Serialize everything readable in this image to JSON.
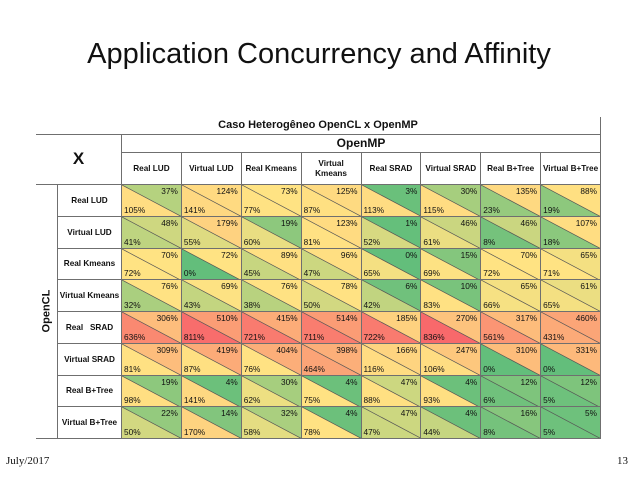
{
  "slide": {
    "title": "Application Concurrency and Affinity",
    "date": "July/2017",
    "page": "13"
  },
  "table": {
    "title": "Caso Heterogêneo OpenCL x OpenMP",
    "col_group": "OpenMP",
    "row_group": "OpenCL",
    "corner": "X",
    "columns": [
      "Real LUD",
      "Virtual LUD",
      "Real Kmeans",
      "Virtual Kmeans",
      "Real SRAD",
      "Virtual SRAD",
      "Real B+Tree",
      "Virtual B+Tree"
    ],
    "rows": [
      "Real LUD",
      "Virtual LUD",
      "Real Kmeans",
      "Virtual Kmeans",
      "Real   SRAD",
      "Virtual SRAD",
      "Real B+Tree",
      "Virtual B+Tree"
    ],
    "top_values": [
      [
        "37%",
        "124%",
        "73%",
        "125%",
        "3%",
        "30%",
        "135%",
        "88%"
      ],
      [
        "48%",
        "179%",
        "19%",
        "123%",
        "1%",
        "46%",
        "46%",
        "107%"
      ],
      [
        "70%",
        "72%",
        "89%",
        "96%",
        "0%",
        "15%",
        "70%",
        "65%"
      ],
      [
        "76%",
        "69%",
        "76%",
        "78%",
        "6%",
        "10%",
        "65%",
        "61%"
      ],
      [
        "306%",
        "510%",
        "415%",
        "514%",
        "185%",
        "270%",
        "317%",
        "460%"
      ],
      [
        "309%",
        "419%",
        "404%",
        "398%",
        "166%",
        "247%",
        "310%",
        "331%"
      ],
      [
        "19%",
        "4%",
        "30%",
        "4%",
        "47%",
        "4%",
        "12%",
        "12%"
      ],
      [
        "22%",
        "14%",
        "32%",
        "4%",
        "47%",
        "4%",
        "16%",
        "5%"
      ]
    ],
    "bottom_values": [
      [
        "105%",
        "141%",
        "77%",
        "87%",
        "113%",
        "115%",
        "23%",
        "19%"
      ],
      [
        "41%",
        "55%",
        "60%",
        "81%",
        "52%",
        "61%",
        "8%",
        "18%"
      ],
      [
        "72%",
        "0%",
        "45%",
        "47%",
        "65%",
        "69%",
        "72%",
        "71%"
      ],
      [
        "32%",
        "43%",
        "38%",
        "50%",
        "42%",
        "83%",
        "66%",
        "65%"
      ],
      [
        "636%",
        "811%",
        "721%",
        "711%",
        "722%",
        "836%",
        "561%",
        "431%"
      ],
      [
        "81%",
        "87%",
        "76%",
        "464%",
        "116%",
        "106%",
        "0%",
        "0%"
      ],
      [
        "98%",
        "141%",
        "62%",
        "75%",
        "88%",
        "93%",
        "6%",
        "5%"
      ],
      [
        "50%",
        "170%",
        "58%",
        "78%",
        "47%",
        "44%",
        "8%",
        "5%"
      ]
    ],
    "colors": {
      "green": "#63be7b",
      "yellow": "#ffe383",
      "red": "#f8696b",
      "grid": "#6f6f6f"
    }
  }
}
